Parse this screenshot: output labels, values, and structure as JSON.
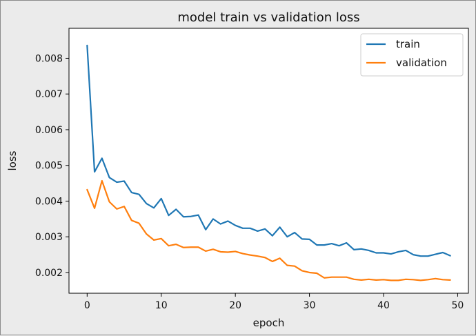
{
  "chart_data": {
    "type": "line",
    "title": "model train vs validation loss",
    "xlabel": "epoch",
    "ylabel": "loss",
    "xlim": [
      -2.45,
      51.45
    ],
    "ylim": [
      0.00142,
      0.00884
    ],
    "xticks": [
      0,
      10,
      20,
      30,
      40,
      50
    ],
    "xtick_labels": [
      "0",
      "10",
      "20",
      "30",
      "40",
      "50"
    ],
    "yticks": [
      0.002,
      0.003,
      0.004,
      0.005,
      0.006,
      0.007,
      0.008
    ],
    "ytick_labels": [
      "0.002",
      "0.003",
      "0.004",
      "0.005",
      "0.006",
      "0.007",
      "0.008"
    ],
    "legend_position": "top-right",
    "x": [
      0,
      1,
      2,
      3,
      4,
      5,
      6,
      7,
      8,
      9,
      10,
      11,
      12,
      13,
      14,
      15,
      16,
      17,
      18,
      19,
      20,
      21,
      22,
      23,
      24,
      25,
      26,
      27,
      28,
      29,
      30,
      31,
      32,
      33,
      34,
      35,
      36,
      37,
      38,
      39,
      40,
      41,
      42,
      43,
      44,
      45,
      46,
      47,
      48,
      49
    ],
    "series": [
      {
        "name": "train",
        "color": "#1f77b4",
        "values": [
          0.00836,
          0.00482,
          0.0052,
          0.00466,
          0.00453,
          0.00456,
          0.00424,
          0.00419,
          0.00393,
          0.00381,
          0.00407,
          0.0036,
          0.00377,
          0.00356,
          0.00357,
          0.00361,
          0.0032,
          0.0035,
          0.00336,
          0.00344,
          0.00332,
          0.00324,
          0.00324,
          0.00316,
          0.00322,
          0.00303,
          0.00327,
          0.003,
          0.00312,
          0.00294,
          0.00293,
          0.00277,
          0.00277,
          0.00281,
          0.00275,
          0.00283,
          0.00264,
          0.00266,
          0.00262,
          0.00255,
          0.00255,
          0.00252,
          0.00258,
          0.00262,
          0.0025,
          0.00246,
          0.00246,
          0.00251,
          0.00256,
          0.00247
        ]
      },
      {
        "name": "validation",
        "color": "#ff7f0e",
        "values": [
          0.00432,
          0.0038,
          0.00457,
          0.00398,
          0.00378,
          0.00385,
          0.00346,
          0.00338,
          0.00308,
          0.00291,
          0.00295,
          0.00275,
          0.00279,
          0.0027,
          0.00271,
          0.00271,
          0.0026,
          0.00265,
          0.00258,
          0.00257,
          0.00259,
          0.00253,
          0.00249,
          0.00246,
          0.00242,
          0.00231,
          0.0024,
          0.0022,
          0.00218,
          0.00205,
          0.002,
          0.00198,
          0.00185,
          0.00187,
          0.00187,
          0.00187,
          0.00181,
          0.00179,
          0.00181,
          0.00179,
          0.0018,
          0.00178,
          0.00178,
          0.00181,
          0.0018,
          0.00178,
          0.0018,
          0.00183,
          0.0018,
          0.00179
        ]
      }
    ]
  }
}
